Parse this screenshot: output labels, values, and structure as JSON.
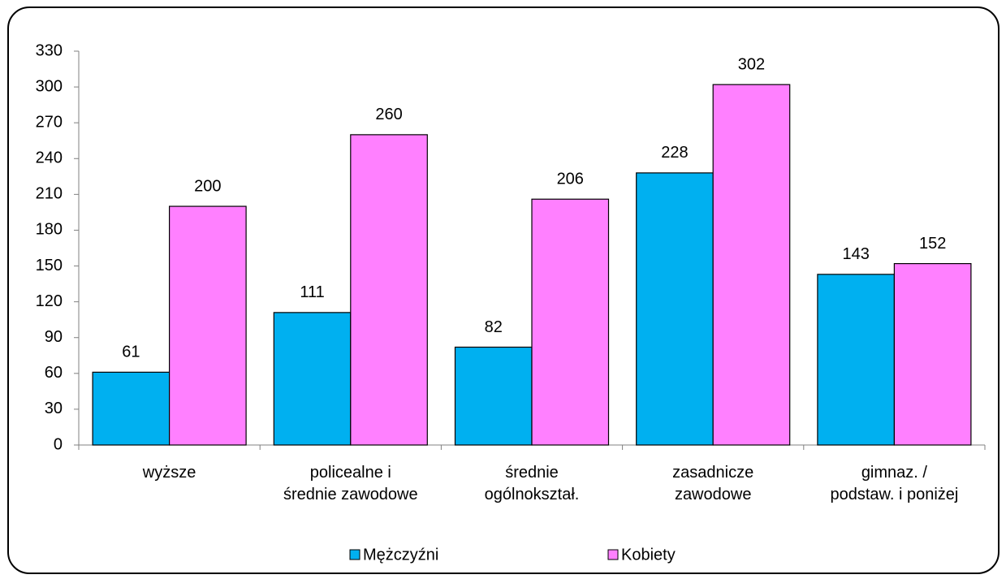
{
  "chart_data": {
    "type": "bar",
    "categories": [
      [
        "wyższe"
      ],
      [
        "policealne i",
        "średnie zawodowe"
      ],
      [
        "średnie",
        "ogólnokształ."
      ],
      [
        "zasadnicze",
        "zawodowe"
      ],
      [
        "gimnaz. /",
        "podstaw.  i poniżej"
      ]
    ],
    "series": [
      {
        "name": "Mężczyźni",
        "color": "#00b0f0",
        "values": [
          61,
          111,
          82,
          228,
          143
        ]
      },
      {
        "name": "Kobiety",
        "color": "#ff80ff",
        "values": [
          200,
          260,
          206,
          302,
          152
        ]
      }
    ],
    "ylim": [
      0,
      330
    ],
    "yticks": [
      0,
      30,
      60,
      90,
      120,
      150,
      180,
      210,
      240,
      270,
      300,
      330
    ],
    "legend": "bottom"
  }
}
